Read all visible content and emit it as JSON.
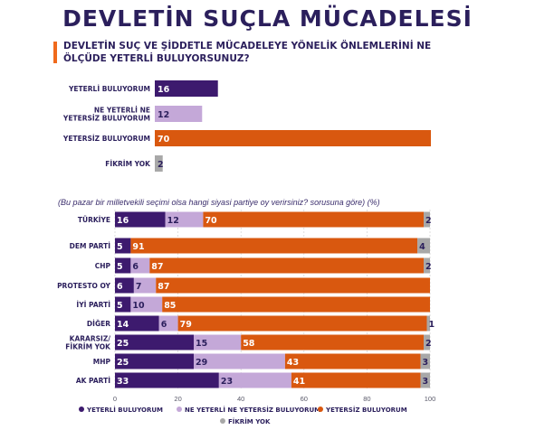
{
  "title": "DEVLETİN SUÇLA MÜCADELESİ",
  "question": "DEVLETİN SUÇ VE ŞİDDETLE MÜCADELEYE YÖNELİK ÖNLEMLERİNİ NE ÖLÇÜDE YETERLİ BULUYORSUNUZ?",
  "subtitle": "(Bu pazar bir milletvekili seçimi olsa hangi siyasi partiye oy verirsiniz? sorusuna göre) (%)",
  "colors": {
    "yeterli": "#3d1a6e",
    "ne_yeterli": "#c4a8d8",
    "yetersiz": "#d9580f",
    "fikrim_yok": "#a8a8a8"
  },
  "chart_data": [
    {
      "type": "bar",
      "orientation": "horizontal",
      "categories": [
        "YETERLİ BULUYORUM",
        "NE YETERLİ NE YETERSİZ BULUYORUM",
        "YETERSİZ BULUYORUM",
        "FİKRİM YOK"
      ],
      "category_lines": [
        [
          "YETERLİ BULUYORUM"
        ],
        [
          "NE YETERLİ NE",
          "YETERSİZ BULUYORUM"
        ],
        [
          "YETERSİZ BULUYORUM"
        ],
        [
          "FİKRİM YOK"
        ]
      ],
      "values": [
        16,
        12,
        70,
        2
      ],
      "value_labels": [
        "16",
        "12",
        "70",
        "2"
      ]
    },
    {
      "type": "bar",
      "orientation": "horizontal",
      "stacked": true,
      "categories": [
        "TÜRKİYE",
        "DEM PARTİ",
        "CHP",
        "PROTESTO OY",
        "İYİ PARTİ",
        "DİĞER",
        "KARARSIZ/ FİKRİM YOK",
        "MHP",
        "AK PARTİ"
      ],
      "category_lines": [
        [
          "TÜRKİYE"
        ],
        [
          "DEM PARTİ"
        ],
        [
          "CHP"
        ],
        [
          "PROTESTO OY"
        ],
        [
          "İYİ PARTİ"
        ],
        [
          "DİĞER"
        ],
        [
          "KARARSIZ/",
          "FİKRİM YOK"
        ],
        [
          "MHP"
        ],
        [
          "AK PARTİ"
        ]
      ],
      "series": [
        {
          "name": "YETERLİ BULUYORUM",
          "values": [
            16,
            5,
            5,
            6,
            5,
            14,
            25,
            25,
            33
          ],
          "labels": [
            "16",
            "5",
            "5",
            "6",
            "5",
            "14",
            "25",
            "25",
            "33"
          ]
        },
        {
          "name": "NE YETERLİ NE YETERSİZ BULUYORUM",
          "values": [
            12,
            0,
            6,
            7,
            10,
            6,
            15,
            29,
            23
          ],
          "labels": [
            "12",
            "",
            "6",
            "7",
            "10",
            "6",
            "15",
            "29",
            "23"
          ]
        },
        {
          "name": "YETERSİZ BULUYORUM",
          "values": [
            70,
            91,
            87,
            87,
            85,
            79,
            58,
            43,
            41
          ],
          "labels": [
            "70",
            "91",
            "87",
            "87",
            "85",
            "79",
            "58",
            "43",
            "41"
          ]
        },
        {
          "name": "FİKRİM YOK",
          "values": [
            2,
            4,
            2,
            0,
            0,
            1,
            2,
            3,
            3
          ],
          "labels": [
            "2",
            "4",
            "2",
            "",
            "",
            "1",
            "2",
            "3",
            "3"
          ]
        }
      ],
      "xlim": [
        0,
        100
      ],
      "xticks": [
        "0",
        "20",
        "40",
        "60",
        "80",
        "100"
      ],
      "grid": true,
      "legend": "bottom"
    }
  ]
}
